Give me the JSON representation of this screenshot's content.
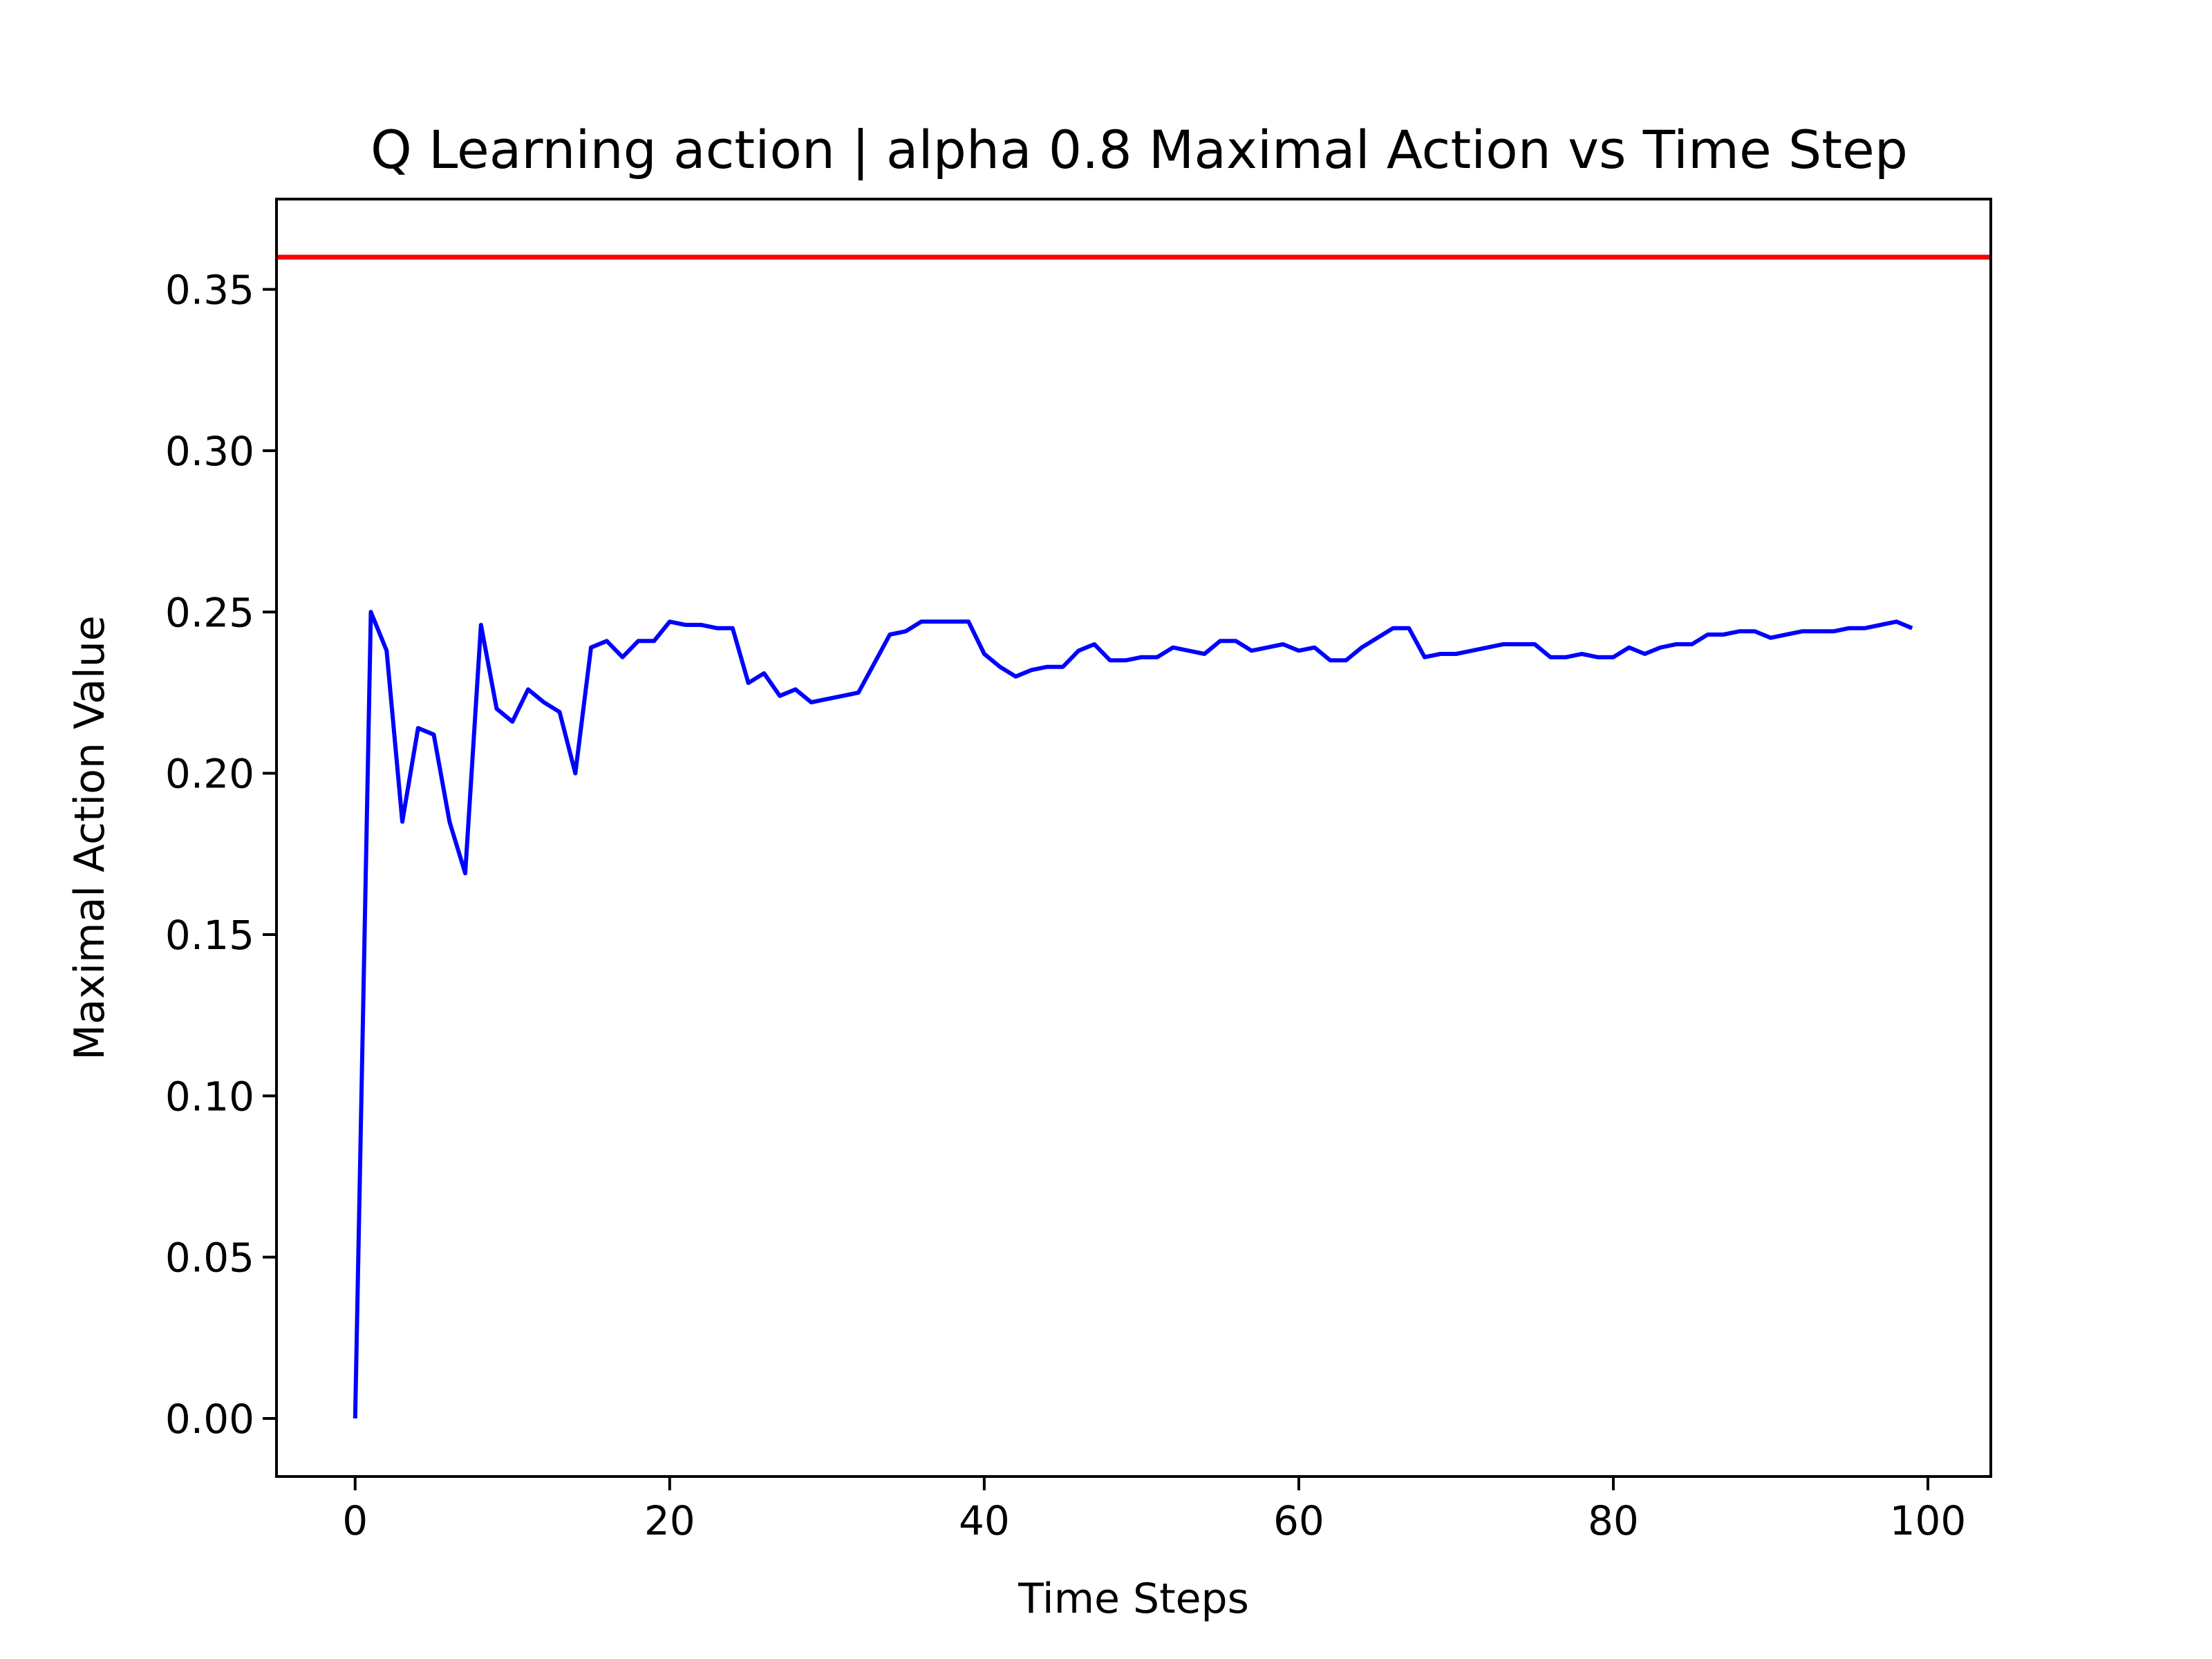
{
  "chart_data": {
    "type": "line",
    "title": "Q Learning action | alpha 0.8 Maximal Action vs Time Step",
    "xlabel": "Time Steps",
    "ylabel": "Maximal Action Value",
    "xlim": [
      -5,
      104
    ],
    "ylim": [
      -0.018,
      0.378
    ],
    "xticks": [
      0,
      20,
      40,
      60,
      80,
      100
    ],
    "xtick_labels": [
      "0",
      "20",
      "40",
      "60",
      "80",
      "100"
    ],
    "yticks": [
      0.0,
      0.05,
      0.1,
      0.15,
      0.2,
      0.25,
      0.3,
      0.35
    ],
    "ytick_labels": [
      "0.00",
      "0.05",
      "0.10",
      "0.15",
      "0.20",
      "0.25",
      "0.30",
      "0.35"
    ],
    "grid": false,
    "reference_line": {
      "y": 0.36,
      "color": "#ff0000"
    },
    "series": [
      {
        "color": "#0000ff",
        "x": [
          0,
          1,
          2,
          3,
          4,
          5,
          6,
          7,
          8,
          9,
          10,
          11,
          12,
          13,
          14,
          15,
          16,
          17,
          18,
          19,
          20,
          21,
          22,
          23,
          24,
          25,
          26,
          27,
          28,
          29,
          30,
          31,
          32,
          33,
          34,
          35,
          36,
          37,
          38,
          39,
          40,
          41,
          42,
          43,
          44,
          45,
          46,
          47,
          48,
          49,
          50,
          51,
          52,
          53,
          54,
          55,
          56,
          57,
          58,
          59,
          60,
          61,
          62,
          63,
          64,
          65,
          66,
          67,
          68,
          69,
          70,
          71,
          72,
          73,
          74,
          75,
          76,
          77,
          78,
          79,
          80,
          81,
          82,
          83,
          84,
          85,
          86,
          87,
          88,
          89,
          90,
          91,
          92,
          93,
          94,
          95,
          96,
          97,
          98,
          99
        ],
        "y": [
          0.0,
          0.25,
          0.238,
          0.185,
          0.214,
          0.212,
          0.185,
          0.169,
          0.246,
          0.22,
          0.216,
          0.226,
          0.222,
          0.219,
          0.2,
          0.239,
          0.241,
          0.236,
          0.241,
          0.241,
          0.247,
          0.246,
          0.246,
          0.245,
          0.245,
          0.228,
          0.231,
          0.224,
          0.226,
          0.222,
          0.223,
          0.224,
          0.225,
          0.234,
          0.243,
          0.244,
          0.247,
          0.247,
          0.247,
          0.247,
          0.237,
          0.233,
          0.23,
          0.232,
          0.233,
          0.233,
          0.238,
          0.24,
          0.235,
          0.235,
          0.236,
          0.236,
          0.239,
          0.238,
          0.237,
          0.241,
          0.241,
          0.238,
          0.239,
          0.24,
          0.238,
          0.239,
          0.235,
          0.235,
          0.239,
          0.242,
          0.245,
          0.245,
          0.236,
          0.237,
          0.237,
          0.238,
          0.239,
          0.24,
          0.24,
          0.24,
          0.236,
          0.236,
          0.237,
          0.236,
          0.236,
          0.239,
          0.237,
          0.239,
          0.24,
          0.24,
          0.243,
          0.243,
          0.244,
          0.244,
          0.242,
          0.243,
          0.244,
          0.244,
          0.244,
          0.245,
          0.245,
          0.246,
          0.247,
          0.245
        ]
      }
    ]
  }
}
